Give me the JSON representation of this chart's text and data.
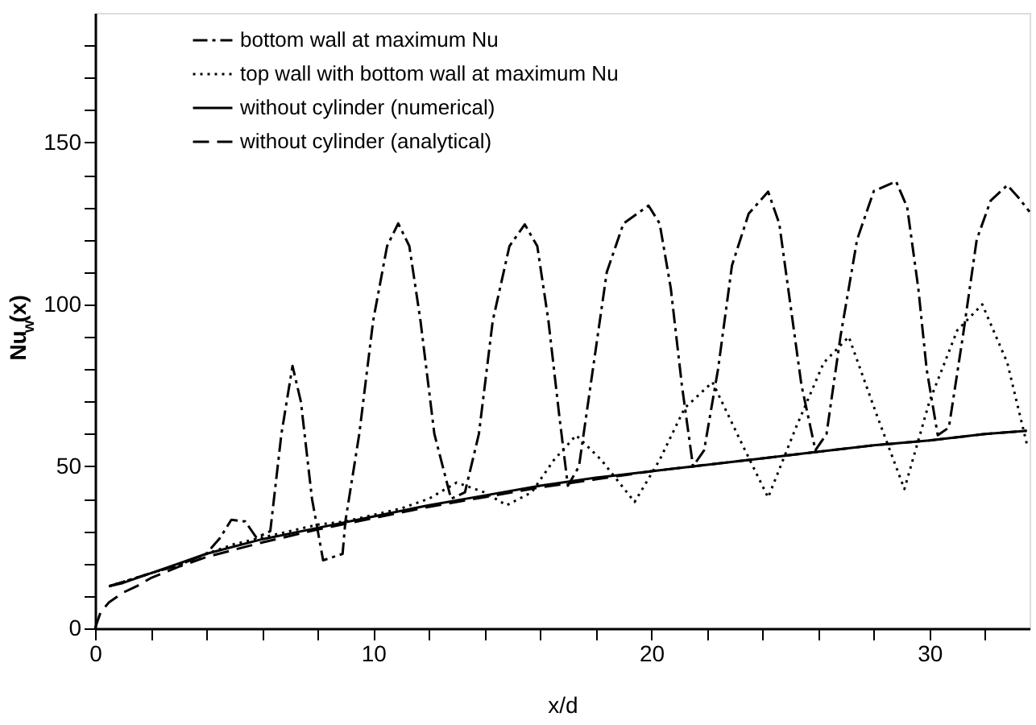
{
  "chart_data": {
    "type": "line",
    "xlabel": "x/d",
    "ylabel": "Nu$_{w}$(x)",
    "xlim": [
      0,
      33.6
    ],
    "ylim": [
      0,
      190
    ],
    "xticks": [
      0,
      {
        "value": 2,
        "label": null
      },
      {
        "value": 4,
        "label": null
      },
      {
        "value": 6,
        "label": null
      },
      {
        "value": 8,
        "label": null
      },
      10,
      {
        "value": 12,
        "label": null
      },
      {
        "value": 14,
        "label": null
      },
      {
        "value": 16,
        "label": null
      },
      {
        "value": 18,
        "label": null
      },
      20,
      {
        "value": 22,
        "label": null
      },
      {
        "value": 24,
        "label": null
      },
      {
        "value": 26,
        "label": null
      },
      {
        "value": 28,
        "label": null
      },
      30,
      {
        "value": 32,
        "label": null
      }
    ],
    "yticks": [
      0,
      {
        "value": 10,
        "label": null
      },
      {
        "value": 20,
        "label": null
      },
      {
        "value": 30,
        "label": null
      },
      {
        "value": 40,
        "label": null
      },
      50,
      {
        "value": 60,
        "label": null
      },
      {
        "value": 70,
        "label": null
      },
      {
        "value": 80,
        "label": null
      },
      {
        "value": 90,
        "label": null
      },
      100,
      {
        "value": 110,
        "label": null
      },
      {
        "value": 120,
        "label": null
      },
      {
        "value": 130,
        "label": null
      },
      {
        "value": 140,
        "label": null
      },
      150,
      {
        "value": 160,
        "label": null
      },
      {
        "value": 170,
        "label": null
      },
      {
        "value": 180,
        "label": null
      }
    ],
    "grid": false,
    "legend": "top left",
    "marker": "none",
    "series": [
      {
        "name": "bottom wall at maximum Nu",
        "color": "#000000",
        "line_style": "dashdot",
        "x": [
          0.5,
          2,
          3,
          4,
          4.5,
          4.9,
          5.4,
          5.8,
          6.3,
          6.7,
          7.1,
          7.4,
          7.8,
          8.2,
          8.9,
          9.0,
          9.5,
          10,
          10.5,
          10.9,
          11.3,
          11.7,
          12.2,
          12.8,
          13.3,
          13.8,
          14.3,
          14.9,
          15.45,
          15.9,
          16.3,
          16.7,
          17.0,
          17.4,
          17.9,
          18.4,
          19.0,
          19.9,
          20.3,
          20.7,
          21.1,
          21.5,
          21.9,
          22.4,
          22.9,
          23.5,
          24.2,
          24.6,
          25.0,
          25.4,
          25.9,
          26.3,
          26.8,
          27.4,
          28.0,
          28.8,
          29.2,
          29.6,
          29.9,
          30.3,
          30.7,
          31.2,
          31.7,
          32.2,
          32.8,
          33.2,
          33.6
        ],
        "values": [
          13,
          17,
          19.5,
          23,
          28,
          33.5,
          33,
          28,
          30,
          60,
          81,
          70,
          40,
          21,
          23,
          33,
          60,
          95,
          118,
          125,
          118,
          95,
          60,
          40,
          42,
          60,
          95,
          118,
          124.7,
          118,
          95,
          65,
          44,
          50,
          80,
          110,
          125,
          130.5,
          125,
          105,
          75,
          50,
          55,
          80,
          112,
          128,
          134.8,
          125,
          100,
          75,
          55,
          60,
          90,
          120,
          135,
          138,
          130,
          105,
          80,
          59.6,
          62,
          90,
          120,
          132,
          136.8,
          133,
          128.6
        ]
      },
      {
        "name": "top wall with bottom wall at maximum Nu",
        "color": "#000000",
        "line_style": "dotted",
        "x": [
          0.5,
          2,
          3,
          4,
          5,
          6,
          7,
          8,
          9,
          10,
          11,
          12,
          13,
          14,
          14.8,
          15.7,
          16.5,
          17.3,
          18.2,
          19.4,
          20.3,
          21.2,
          22.2,
          23.2,
          24.2,
          25.2,
          26.2,
          27.1,
          28.1,
          29.1,
          30.0,
          31.0,
          31.9,
          32.8,
          33.5
        ],
        "values": [
          13,
          17,
          19.5,
          23,
          26,
          28,
          30,
          32,
          33,
          35,
          37,
          40,
          45,
          42,
          38,
          42,
          52,
          59.6,
          52,
          39,
          52,
          68,
          76,
          58,
          40.4,
          62,
          82,
          90,
          66,
          43,
          70,
          92,
          100,
          82,
          57
        ]
      },
      {
        "name": "without cylinder (numerical)",
        "color": "#000000",
        "line_style": "solid",
        "x": [
          0.5,
          1,
          2,
          3,
          4,
          6,
          8,
          10,
          12,
          14,
          16,
          18,
          20,
          22,
          24,
          26,
          28,
          30,
          32,
          33.5
        ],
        "values": [
          13,
          14,
          17,
          20,
          23,
          27.5,
          31,
          34.5,
          38,
          41,
          44,
          46.5,
          48.5,
          50.5,
          52.5,
          54.5,
          56.5,
          58,
          60,
          61
        ]
      },
      {
        "name": "without cylinder (analytical)",
        "color": "#000000",
        "line_style": "dashed",
        "x": [
          0,
          0.2,
          0.5,
          1,
          1.5,
          2,
          3,
          4,
          6,
          8,
          10,
          12,
          14,
          16,
          18,
          20,
          22,
          24,
          26,
          28,
          30,
          32,
          33.5
        ],
        "values": [
          0,
          5,
          8,
          11,
          13,
          15.5,
          19,
          22,
          26.5,
          30.5,
          34,
          37.5,
          40.5,
          43.5,
          46,
          48.5,
          50.5,
          52.5,
          54.5,
          56.5,
          58,
          60,
          61
        ]
      }
    ]
  }
}
